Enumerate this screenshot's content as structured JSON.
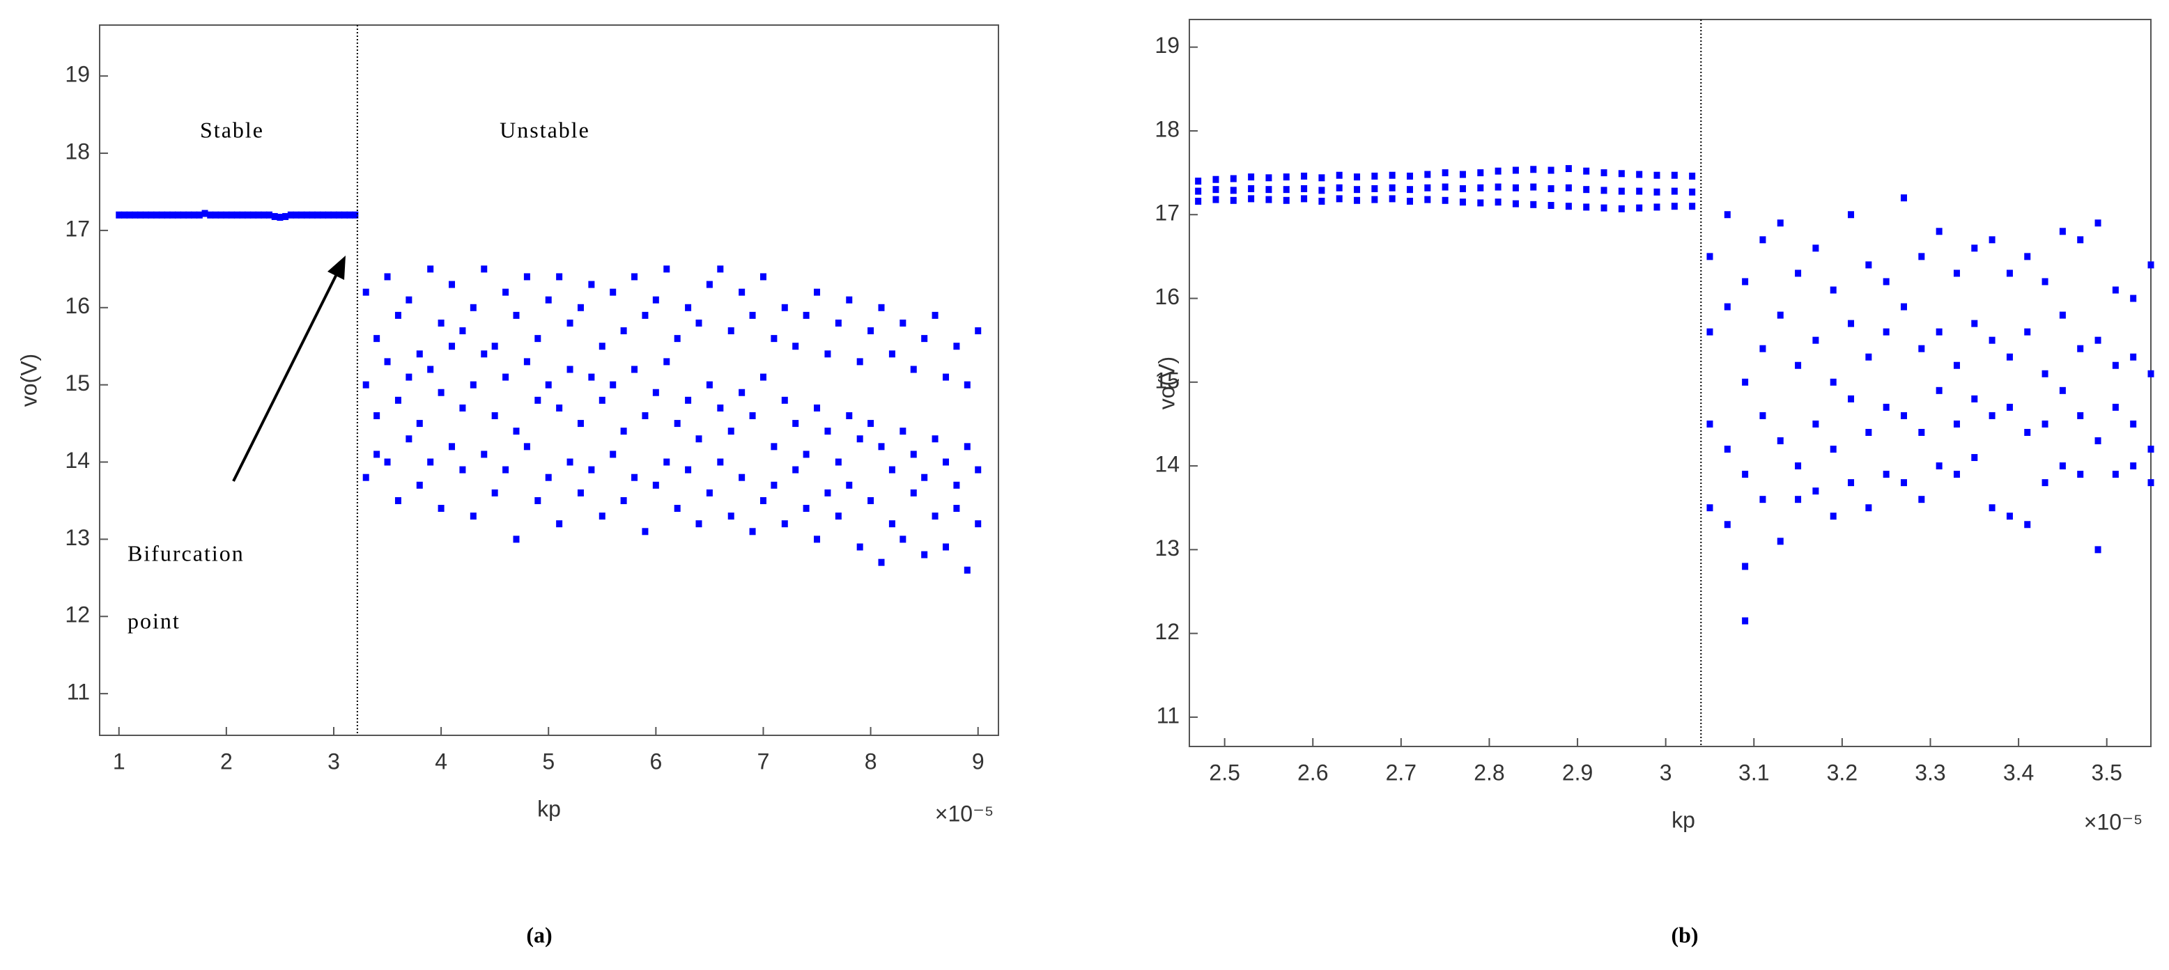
{
  "chart_data": [
    {
      "type": "scatter",
      "caption": "(a)",
      "xlabel": "kp",
      "ylabel": "vo(V)",
      "x_multiplier": "×10⁻⁵",
      "annotations": [
        "Stable",
        "Unstable",
        "Bifurcation",
        "point"
      ],
      "xlim": [
        0.82,
        9.19
      ],
      "ylim": [
        10.46,
        19.66
      ],
      "xticks": [
        1,
        2,
        3,
        4,
        5,
        6,
        7,
        8,
        9
      ],
      "yticks": [
        11,
        12,
        13,
        14,
        15,
        16,
        17,
        18,
        19
      ],
      "vline": 3.22,
      "series": [
        {
          "color": "#0000ff",
          "x": [
            1.0,
            1.05,
            1.1,
            1.15,
            1.2,
            1.25,
            1.3,
            1.35,
            1.4,
            1.45,
            1.5,
            1.55,
            1.6,
            1.65,
            1.7,
            1.75,
            1.8,
            1.85,
            1.9,
            1.95,
            2.0,
            2.05,
            2.1,
            2.15,
            2.2,
            2.25,
            2.3,
            2.35,
            2.4,
            2.45,
            2.5,
            2.55,
            2.6,
            2.65,
            2.7,
            2.75,
            2.8,
            2.85,
            2.9,
            2.95,
            3.0,
            3.05,
            3.1,
            3.15,
            3.2
          ],
          "values": [
            17.2,
            17.2,
            17.2,
            17.2,
            17.2,
            17.2,
            17.2,
            17.2,
            17.2,
            17.2,
            17.2,
            17.2,
            17.2,
            17.2,
            17.2,
            17.2,
            17.22,
            17.2,
            17.2,
            17.2,
            17.2,
            17.2,
            17.2,
            17.2,
            17.2,
            17.2,
            17.2,
            17.2,
            17.2,
            17.18,
            17.17,
            17.18,
            17.2,
            17.2,
            17.2,
            17.2,
            17.2,
            17.2,
            17.2,
            17.2,
            17.2,
            17.2,
            17.2,
            17.2,
            17.2
          ]
        },
        {
          "color": "#0000ff",
          "x": [
            3.3,
            3.3,
            3.3,
            3.4,
            3.4,
            3.4,
            3.5,
            3.5,
            3.5,
            3.6,
            3.6,
            3.6,
            3.7,
            3.7,
            3.7,
            3.8,
            3.8,
            3.8,
            3.9,
            3.9,
            3.9,
            4.0,
            4.0,
            4.0,
            4.1,
            4.1,
            4.1,
            4.2,
            4.2,
            4.2,
            4.3,
            4.3,
            4.3,
            4.4,
            4.4,
            4.4,
            4.5,
            4.5,
            4.5,
            4.6,
            4.6,
            4.6,
            4.7,
            4.7,
            4.7,
            4.8,
            4.8,
            4.8,
            4.9,
            4.9,
            4.9,
            5.0,
            5.0,
            5.0,
            5.1,
            5.1,
            5.1,
            5.2,
            5.2,
            5.2,
            5.3,
            5.3,
            5.3,
            5.4,
            5.4,
            5.4,
            5.5,
            5.5,
            5.5,
            5.6,
            5.6,
            5.6,
            5.7,
            5.7,
            5.7,
            5.8,
            5.8,
            5.8,
            5.9,
            5.9,
            5.9,
            6.0,
            6.0,
            6.0,
            6.1,
            6.1,
            6.1,
            6.2,
            6.2,
            6.2,
            6.3,
            6.3,
            6.3,
            6.4,
            6.4,
            6.4,
            6.5,
            6.5,
            6.5,
            6.6,
            6.6,
            6.6,
            6.7,
            6.7,
            6.7,
            6.8,
            6.8,
            6.8,
            6.9,
            6.9,
            6.9,
            7.0,
            7.0,
            7.0,
            7.1,
            7.1,
            7.1,
            7.2,
            7.2,
            7.2,
            7.3,
            7.3,
            7.3,
            7.4,
            7.4,
            7.4,
            7.5,
            7.5,
            7.5,
            7.6,
            7.6,
            7.6,
            7.7,
            7.7,
            7.7,
            7.8,
            7.8,
            7.8,
            7.9,
            7.9,
            7.9,
            8.0,
            8.0,
            8.0,
            8.1,
            8.1,
            8.1,
            8.2,
            8.2,
            8.2,
            8.3,
            8.3,
            8.3,
            8.4,
            8.4,
            8.4,
            8.5,
            8.5,
            8.5,
            8.6,
            8.6,
            8.6,
            8.7,
            8.7,
            8.7,
            8.8,
            8.8,
            8.8,
            8.9,
            8.9,
            8.9,
            9.0,
            9.0,
            9.0
          ],
          "values": [
            16.2,
            15.0,
            13.8,
            15.6,
            14.6,
            14.1,
            16.4,
            15.3,
            14.0,
            15.9,
            14.8,
            13.5,
            16.1,
            15.1,
            14.3,
            15.4,
            14.5,
            13.7,
            16.5,
            15.2,
            14.0,
            15.8,
            14.9,
            13.4,
            16.3,
            15.5,
            14.2,
            15.7,
            14.7,
            13.9,
            16.0,
            15.0,
            13.3,
            16.5,
            15.4,
            14.1,
            15.5,
            14.6,
            13.6,
            16.2,
            15.1,
            13.9,
            15.9,
            14.4,
            13.0,
            16.4,
            15.3,
            14.2,
            15.6,
            14.8,
            13.5,
            16.1,
            15.0,
            13.8,
            16.4,
            14.7,
            13.2,
            15.8,
            15.2,
            14.0,
            16.0,
            14.5,
            13.6,
            16.3,
            15.1,
            13.9,
            15.5,
            14.8,
            13.3,
            16.2,
            15.0,
            14.1,
            15.7,
            14.4,
            13.5,
            16.4,
            15.2,
            13.8,
            15.9,
            14.6,
            13.1,
            16.1,
            14.9,
            13.7,
            16.5,
            15.3,
            14.0,
            15.6,
            14.5,
            13.4,
            16.0,
            14.8,
            13.9,
            15.8,
            14.3,
            13.2,
            16.3,
            15.0,
            13.6,
            16.5,
            14.7,
            14.0,
            15.7,
            14.4,
            13.3,
            16.2,
            14.9,
            13.8,
            15.9,
            14.6,
            13.1,
            16.4,
            15.1,
            13.5,
            15.6,
            14.2,
            13.7,
            16.0,
            14.8,
            13.2,
            15.5,
            14.5,
            13.9,
            15.9,
            14.1,
            13.4,
            16.2,
            14.7,
            13.0,
            15.4,
            14.4,
            13.6,
            15.8,
            14.0,
            13.3,
            16.1,
            14.6,
            13.7,
            15.3,
            14.3,
            12.9,
            15.7,
            14.5,
            13.5,
            16.0,
            14.2,
            12.7,
            15.4,
            13.9,
            13.2,
            15.8,
            14.4,
            13.0,
            15.2,
            14.1,
            13.6,
            15.6,
            13.8,
            12.8,
            15.9,
            14.3,
            13.3,
            15.1,
            14.0,
            12.9,
            15.5,
            13.7,
            13.4,
            15.0,
            14.2,
            12.6,
            15.7,
            13.9,
            13.2
          ]
        }
      ]
    },
    {
      "type": "scatter",
      "caption": "(b)",
      "xlabel": "kp",
      "ylabel": "vo(V)",
      "x_multiplier": "×10⁻⁵",
      "xlim": [
        2.46,
        3.55
      ],
      "ylim": [
        10.65,
        19.33
      ],
      "xticks": [
        2.5,
        2.6,
        2.7,
        2.8,
        2.9,
        3,
        3.1,
        3.2,
        3.3,
        3.4,
        3.5
      ],
      "yticks": [
        11,
        12,
        13,
        14,
        15,
        16,
        17,
        18,
        19
      ],
      "vline": 3.04,
      "series": [
        {
          "color": "#0000ff",
          "x": [
            2.47,
            2.47,
            2.47,
            2.49,
            2.49,
            2.49,
            2.51,
            2.51,
            2.51,
            2.53,
            2.53,
            2.53,
            2.55,
            2.55,
            2.55,
            2.57,
            2.57,
            2.57,
            2.59,
            2.59,
            2.59,
            2.61,
            2.61,
            2.61,
            2.63,
            2.63,
            2.63,
            2.65,
            2.65,
            2.65,
            2.67,
            2.67,
            2.67,
            2.69,
            2.69,
            2.69,
            2.71,
            2.71,
            2.71,
            2.73,
            2.73,
            2.73,
            2.75,
            2.75,
            2.75,
            2.77,
            2.77,
            2.77,
            2.79,
            2.79,
            2.79,
            2.81,
            2.81,
            2.81,
            2.83,
            2.83,
            2.83,
            2.85,
            2.85,
            2.85,
            2.87,
            2.87,
            2.87,
            2.89,
            2.89,
            2.89,
            2.91,
            2.91,
            2.91,
            2.93,
            2.93,
            2.93,
            2.95,
            2.95,
            2.95,
            2.97,
            2.97,
            2.97,
            2.99,
            2.99,
            2.99,
            3.01,
            3.01,
            3.01,
            3.03,
            3.03,
            3.03
          ],
          "values": [
            17.4,
            17.28,
            17.16,
            17.42,
            17.3,
            17.18,
            17.43,
            17.29,
            17.17,
            17.45,
            17.31,
            17.19,
            17.44,
            17.3,
            17.18,
            17.45,
            17.3,
            17.17,
            17.46,
            17.31,
            17.19,
            17.44,
            17.29,
            17.16,
            17.47,
            17.32,
            17.19,
            17.45,
            17.3,
            17.17,
            17.46,
            17.31,
            17.18,
            17.47,
            17.32,
            17.19,
            17.46,
            17.3,
            17.16,
            17.48,
            17.32,
            17.18,
            17.5,
            17.33,
            17.17,
            17.48,
            17.31,
            17.15,
            17.5,
            17.32,
            17.14,
            17.52,
            17.33,
            17.15,
            17.53,
            17.32,
            17.13,
            17.54,
            17.33,
            17.12,
            17.53,
            17.31,
            17.11,
            17.55,
            17.32,
            17.1,
            17.52,
            17.3,
            17.09,
            17.5,
            17.29,
            17.08,
            17.49,
            17.28,
            17.07,
            17.48,
            17.28,
            17.08,
            17.47,
            17.27,
            17.09,
            17.47,
            17.28,
            17.1,
            17.46,
            17.27,
            17.1
          ]
        },
        {
          "color": "#0000ff",
          "x": [
            3.05,
            3.05,
            3.05,
            3.05,
            3.07,
            3.07,
            3.07,
            3.07,
            3.09,
            3.09,
            3.09,
            3.09,
            3.09,
            3.11,
            3.11,
            3.11,
            3.11,
            3.13,
            3.13,
            3.13,
            3.13,
            3.15,
            3.15,
            3.15,
            3.15,
            3.17,
            3.17,
            3.17,
            3.17,
            3.19,
            3.19,
            3.19,
            3.19,
            3.21,
            3.21,
            3.21,
            3.21,
            3.23,
            3.23,
            3.23,
            3.23,
            3.25,
            3.25,
            3.25,
            3.25,
            3.27,
            3.27,
            3.27,
            3.27,
            3.29,
            3.29,
            3.29,
            3.29,
            3.31,
            3.31,
            3.31,
            3.31,
            3.33,
            3.33,
            3.33,
            3.33,
            3.35,
            3.35,
            3.35,
            3.35,
            3.37,
            3.37,
            3.37,
            3.37,
            3.39,
            3.39,
            3.39,
            3.39,
            3.41,
            3.41,
            3.41,
            3.41,
            3.43,
            3.43,
            3.43,
            3.43,
            3.45,
            3.45,
            3.45,
            3.45,
            3.47,
            3.47,
            3.47,
            3.47,
            3.49,
            3.49,
            3.49,
            3.49,
            3.51,
            3.51,
            3.51,
            3.51,
            3.53,
            3.53,
            3.53,
            3.53,
            3.55,
            3.55,
            3.55,
            3.55
          ],
          "values": [
            16.5,
            15.6,
            14.5,
            13.5,
            17.0,
            15.9,
            14.2,
            13.3,
            16.2,
            15.0,
            13.9,
            12.8,
            12.15,
            16.7,
            15.4,
            14.6,
            13.6,
            16.9,
            15.8,
            14.3,
            13.1,
            16.3,
            15.2,
            14.0,
            13.6,
            16.6,
            15.5,
            14.5,
            13.7,
            16.1,
            15.0,
            14.2,
            13.4,
            17.0,
            15.7,
            14.8,
            13.8,
            16.4,
            15.3,
            14.4,
            13.5,
            16.2,
            15.6,
            14.7,
            13.9,
            17.2,
            15.9,
            14.6,
            13.8,
            16.5,
            15.4,
            14.4,
            13.6,
            16.8,
            15.6,
            14.9,
            14.0,
            16.3,
            15.2,
            14.5,
            13.9,
            16.6,
            15.7,
            14.8,
            14.1,
            16.7,
            15.5,
            14.6,
            13.5,
            16.3,
            15.3,
            14.7,
            13.4,
            16.5,
            15.6,
            14.4,
            13.3,
            16.2,
            15.1,
            14.5,
            13.8,
            16.8,
            15.8,
            14.9,
            14.0,
            16.7,
            15.4,
            14.6,
            13.9,
            16.9,
            15.5,
            14.3,
            13.0,
            16.1,
            15.2,
            14.7,
            13.9,
            16.0,
            15.3,
            14.5,
            14.0,
            16.4,
            15.1,
            14.2,
            13.8
          ]
        }
      ]
    }
  ]
}
